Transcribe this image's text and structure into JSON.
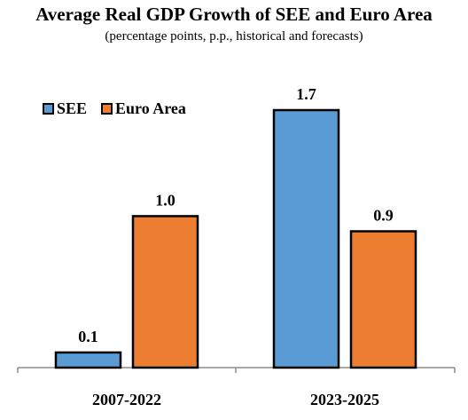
{
  "chart_data": {
    "type": "bar",
    "title": "Average Real GDP Growth of SEE and Euro Area",
    "subtitle": "(percentage points, p.p., historical and forecasts)",
    "categories": [
      "2007-2022",
      "2023-2025"
    ],
    "series": [
      {
        "name": "SEE",
        "values": [
          0.1,
          1.7
        ],
        "color": "#5B9BD5",
        "labels": [
          "0.1",
          "1.7"
        ]
      },
      {
        "name": "Euro Area",
        "values": [
          1.0,
          0.9
        ],
        "color": "#ED7D31",
        "labels": [
          "1.0",
          "0.9"
        ]
      }
    ],
    "ylim": [
      0,
      1.7
    ],
    "grid": false,
    "legend": "top-left"
  }
}
